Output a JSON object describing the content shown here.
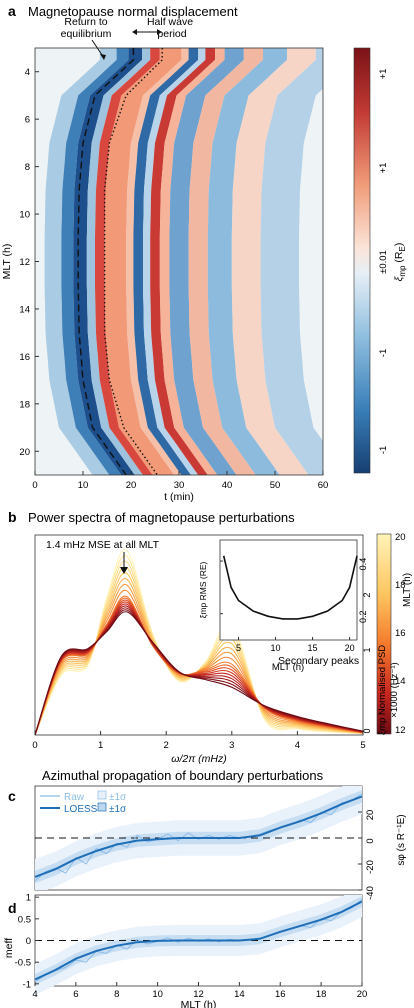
{
  "figure": {
    "panel_letters": [
      "a",
      "b",
      "c",
      "d"
    ],
    "colors": {
      "cmap_red": "#8b1a1a",
      "cmap_blue": "#15457d",
      "cmap_mid": "#f3f6f6",
      "psd_dark": "#7a0a12",
      "psd_light": "#fff2b0",
      "loess_blue": "#1f6fb8",
      "raw_blue": "#8cbce6",
      "band_blue": "#cfe3f5"
    }
  },
  "panel_a": {
    "title": "Magnetopause normal displacement",
    "annotations": {
      "return_line1": "Return to",
      "return_line2": "equilibrium",
      "half_line1": "Half wave",
      "half_line2": "period"
    },
    "colorbar": {
      "label_main": "ξ",
      "label_sub": "mp",
      "label_unit": " (R",
      "label_unit_sub": "E",
      "label_close": ")",
      "ticks": [
        "+1",
        "+1",
        "±0.01",
        "-1",
        "-1"
      ]
    }
  },
  "panel_b": {
    "title": "Power spectra of magnetopause perturbations",
    "annotation_peak": "1.4 mHz MSE at all MLT",
    "annotation_secondary": "Secondary peaks",
    "inset_ylabel": "ξmp RMS (RE)",
    "inset_xlabel": "MLT (h)",
    "inset_xticks": [
      "5",
      "10",
      "15",
      "20"
    ],
    "inset_yticks": [
      "0.2",
      "0.4"
    ],
    "right_axis_label1": "ξmp Normalised PSD",
    "right_axis_label2": "×1000 (Hz⁻¹)",
    "colorbar_label": "MLT (h)",
    "colorbar_ticks": [
      "20",
      "18",
      "16",
      "14",
      "12"
    ],
    "right_ticks": [
      "2",
      "1",
      "0"
    ]
  },
  "panel_cd": {
    "title": "Azimuthal propagation of boundary perturbations",
    "legend": {
      "raw": "Raw",
      "loess": "LOESS",
      "sigma1": "±1σ",
      "sigma2": "±1σ"
    },
    "c_right_label": "sφ (s R⁻¹E)",
    "c_right_ticks": [
      "20",
      "0",
      "-20",
      "-40"
    ],
    "d_ylabel": "meff"
  },
  "chart_data": [
    {
      "type": "heatmap",
      "panel": "a",
      "title": "Magnetopause normal displacement",
      "xlabel": "t (min)",
      "ylabel": "MLT (h)",
      "x_ticks": [
        "0",
        "10",
        "20",
        "30",
        "40",
        "50",
        "60"
      ],
      "y_ticks": [
        "4",
        "6",
        "8",
        "10",
        "12",
        "14",
        "16",
        "18",
        "20"
      ],
      "xlim": [
        0,
        60
      ],
      "ylim": [
        3,
        21
      ],
      "description_of_wavefronts_t_min": {
        "MLT": [
          3.5,
          5,
          7,
          9,
          11,
          12,
          13,
          15,
          17,
          19,
          21
        ],
        "return_to_equilibrium": [
          20.5,
          12.5,
          10,
          9.2,
          9,
          9,
          9,
          9.2,
          10,
          12,
          19
        ],
        "dotted_front": [
          26.5,
          19,
          15.5,
          14.5,
          14.5,
          14.5,
          14.5,
          14.5,
          15.5,
          18.5,
          25.5
        ]
      }
    },
    {
      "type": "line",
      "panel": "b",
      "title": "Power spectra of magnetopause perturbations",
      "xlabel": "ω/2π (mHz)",
      "x_ticks": [
        "0",
        "1",
        "2",
        "3",
        "4",
        "5"
      ],
      "xlim": [
        0,
        5
      ],
      "ylim": [
        0,
        2.6
      ],
      "peak_frequency_mHz": 1.4,
      "series": [
        {
          "MLT": 12,
          "x": [
            0,
            0.4,
            0.8,
            1.1,
            1.4,
            1.8,
            2.2,
            2.6,
            3.0,
            3.5,
            4.0,
            4.5,
            5.0
          ],
          "y": [
            0,
            1.02,
            1.12,
            1.35,
            1.6,
            1.2,
            0.82,
            0.72,
            0.62,
            0.38,
            0.24,
            0.14,
            0.05
          ]
        },
        {
          "MLT": 16,
          "x": [
            0,
            0.4,
            0.8,
            1.1,
            1.4,
            1.8,
            2.2,
            2.6,
            3.0,
            3.5,
            4.0,
            4.5,
            5.0
          ],
          "y": [
            0,
            0.95,
            1.05,
            1.45,
            1.8,
            1.15,
            0.8,
            0.85,
            0.92,
            0.35,
            0.18,
            0.1,
            0.03
          ]
        },
        {
          "MLT": 20,
          "x": [
            0,
            0.4,
            0.8,
            1.1,
            1.4,
            1.8,
            2.2,
            2.6,
            3.0,
            3.5,
            4.0,
            4.5,
            5.0
          ],
          "y": [
            0,
            0.78,
            0.9,
            1.8,
            2.4,
            1.3,
            0.7,
            0.95,
            1.45,
            0.2,
            0.08,
            0.04,
            0.02
          ]
        }
      ],
      "inset": {
        "type": "line",
        "xlabel": "MLT (h)",
        "ylabel": "ξmp RMS (RE)",
        "xlim": [
          2.5,
          21
        ],
        "ylim": [
          0.1,
          0.48
        ],
        "x": [
          3,
          4,
          5,
          7,
          9,
          11,
          12,
          13,
          15,
          17,
          19,
          20,
          21
        ],
        "y": [
          0.42,
          0.3,
          0.25,
          0.21,
          0.19,
          0.18,
          0.18,
          0.18,
          0.19,
          0.21,
          0.25,
          0.3,
          0.42
        ]
      }
    },
    {
      "type": "line",
      "panel": "c",
      "title": "Azimuthal propagation of boundary perturbations",
      "ylabel": "sφ (s R⁻¹E)",
      "xlim": [
        4,
        20
      ],
      "ylim": [
        -40,
        40
      ],
      "y_ticks": [
        "20",
        "0",
        "-20",
        "-40"
      ],
      "series": [
        {
          "name": "LOESS",
          "x": [
            4,
            5,
            6,
            7,
            8,
            9,
            10,
            11,
            12,
            13,
            14,
            15,
            16,
            17,
            18,
            19,
            20
          ],
          "y": [
            -30,
            -24,
            -16,
            -10,
            -5,
            -2,
            -1,
            0,
            0,
            0,
            0,
            2,
            8,
            13,
            19,
            26,
            32
          ]
        },
        {
          "name": "Raw",
          "x": [
            4,
            4.5,
            5,
            5.5,
            6,
            6.5,
            7,
            7.5,
            8,
            8.5,
            9,
            9.5,
            10,
            10.5,
            11,
            11.5,
            12,
            12.5,
            13,
            13.5,
            14,
            14.5,
            15,
            15.5,
            16,
            16.5,
            17,
            17.5,
            18,
            18.5,
            19,
            19.5,
            20
          ],
          "y": [
            -33,
            -26,
            -23,
            -27,
            -15,
            -20,
            -8,
            -12,
            -4,
            -7,
            2,
            -3,
            -1,
            3,
            -2,
            4,
            -1,
            2,
            -1,
            2,
            0,
            1,
            3,
            6,
            8,
            10,
            14,
            12,
            20,
            18,
            27,
            29,
            34
          ]
        }
      ]
    },
    {
      "type": "line",
      "panel": "d",
      "xlabel": "MLT (h)",
      "ylabel": "meff",
      "x_ticks": [
        "4",
        "6",
        "8",
        "10",
        "12",
        "14",
        "16",
        "18",
        "20"
      ],
      "y_ticks": [
        "-1",
        "-0.5",
        "0",
        "0.5",
        "1"
      ],
      "xlim": [
        4,
        20
      ],
      "ylim": [
        -1.05,
        1.05
      ],
      "series": [
        {
          "name": "LOESS",
          "x": [
            4,
            5,
            6,
            7,
            8,
            9,
            10,
            11,
            12,
            13,
            14,
            15,
            16,
            17,
            18,
            19,
            20
          ],
          "y": [
            -0.9,
            -0.68,
            -0.42,
            -0.24,
            -0.12,
            -0.04,
            -0.01,
            0,
            0,
            0,
            0,
            0.04,
            0.2,
            0.34,
            0.48,
            0.66,
            0.9
          ]
        },
        {
          "name": "Raw",
          "x": [
            4,
            4.5,
            5,
            5.5,
            6,
            6.5,
            7,
            7.5,
            8,
            8.5,
            9,
            9.5,
            10,
            10.5,
            11,
            11.5,
            12,
            12.5,
            13,
            13.5,
            14,
            14.5,
            15,
            15.5,
            16,
            16.5,
            17,
            17.5,
            18,
            18.5,
            19,
            19.5,
            20
          ],
          "y": [
            -0.95,
            -0.8,
            -0.7,
            -0.62,
            -0.45,
            -0.5,
            -0.25,
            -0.3,
            -0.1,
            -0.2,
            0.02,
            -0.08,
            -0.02,
            0.06,
            -0.04,
            0.05,
            -0.02,
            0.04,
            -0.03,
            0.03,
            0,
            0.02,
            0.05,
            0.12,
            0.2,
            0.26,
            0.34,
            0.3,
            0.5,
            0.46,
            0.66,
            0.75,
            0.95
          ]
        }
      ]
    }
  ]
}
